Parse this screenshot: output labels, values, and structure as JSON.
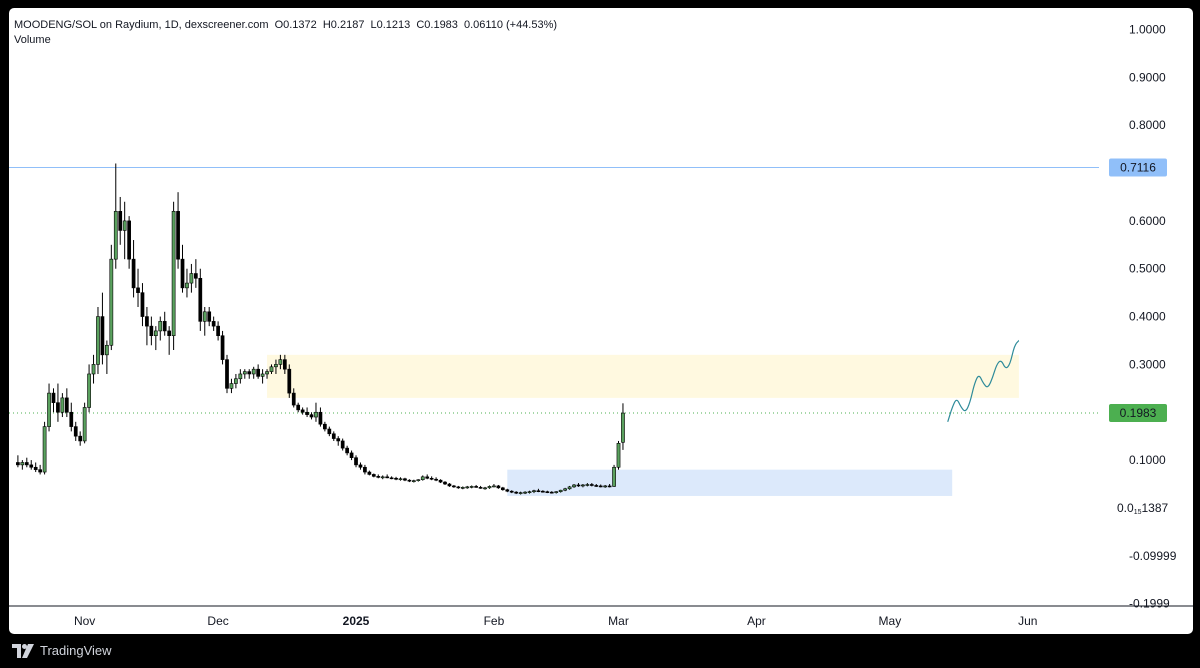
{
  "legend": {
    "symbol": "MOODENG/SOL on Raydium, 1D, dexscreener.com",
    "open": "O0.1372",
    "high": "H0.2187",
    "low": "L0.1213",
    "close": "C0.1983",
    "change": "0.06110 (+44.53%)",
    "volume_label": "Volume"
  },
  "footer": {
    "brand": "TradingView",
    "logo_icon": "tradingview-logo-icon"
  },
  "price_badges": {
    "resistance": {
      "label": "0.7116",
      "value": 0.7116,
      "color": "#90bff9",
      "line_color": "#90bff9"
    },
    "last": {
      "label": "0.1983",
      "value": 0.1983,
      "color": "#4caf50",
      "line_color": "#4caf50"
    }
  },
  "chart_data": {
    "type": "candlestick",
    "instrument": "MOODENG/SOL",
    "interval": "1D",
    "y_axis": {
      "ticks": [
        1.0,
        0.9,
        0.8,
        0.6,
        0.5,
        0.4,
        0.3,
        0.1,
        -0.09999,
        -0.1999
      ],
      "tick_labels": [
        "1.0000",
        "0.9000",
        "0.8000",
        "0.6000",
        "0.5000",
        "0.4000",
        "0.3000",
        "0.1000",
        "-0.09999",
        "-0.1999"
      ],
      "zero_label": {
        "value": 0.0,
        "main": "0.0",
        "sub": "15",
        "tail": "1387"
      },
      "range": [
        -0.205,
        1.045
      ]
    },
    "x_axis": {
      "labels": [
        {
          "text": "Nov",
          "day": 15,
          "bold": false
        },
        {
          "text": "Dec",
          "day": 45,
          "bold": false
        },
        {
          "text": "2025",
          "day": 76,
          "bold": true
        },
        {
          "text": "Feb",
          "day": 107,
          "bold": false
        },
        {
          "text": "Mar",
          "day": 135,
          "bold": false
        },
        {
          "text": "Apr",
          "day": 166,
          "bold": false
        },
        {
          "text": "May",
          "day": 196,
          "bold": false
        },
        {
          "text": "Jun",
          "day": 227,
          "bold": false
        }
      ],
      "range_days": [
        -2,
        243
      ]
    },
    "zones": [
      {
        "name": "resistance-zone",
        "from_day": 56,
        "to_day": 225,
        "low": 0.23,
        "high": 0.32,
        "color": "#fff9e0"
      },
      {
        "name": "accumulation-zone",
        "from_day": 110,
        "to_day": 210,
        "low": 0.025,
        "high": 0.08,
        "color": "#dce9fb"
      }
    ],
    "projection": {
      "color": "#2e8b9a",
      "points": [
        [
          209,
          0.18
        ],
        [
          210,
          0.21
        ],
        [
          211,
          0.23
        ],
        [
          212,
          0.21
        ],
        [
          213,
          0.2
        ],
        [
          214,
          0.22
        ],
        [
          215,
          0.26
        ],
        [
          216,
          0.28
        ],
        [
          217,
          0.26
        ],
        [
          218,
          0.25
        ],
        [
          219,
          0.27
        ],
        [
          220,
          0.3
        ],
        [
          221,
          0.31
        ],
        [
          222,
          0.29
        ],
        [
          223,
          0.3
        ],
        [
          224,
          0.34
        ],
        [
          225,
          0.35
        ]
      ]
    },
    "candles": [
      {
        "o": 0.095,
        "h": 0.11,
        "l": 0.085,
        "c": 0.09
      },
      {
        "o": 0.09,
        "h": 0.1,
        "l": 0.08,
        "c": 0.095
      },
      {
        "o": 0.095,
        "h": 0.105,
        "l": 0.085,
        "c": 0.09
      },
      {
        "o": 0.09,
        "h": 0.1,
        "l": 0.08,
        "c": 0.085
      },
      {
        "o": 0.085,
        "h": 0.095,
        "l": 0.075,
        "c": 0.08
      },
      {
        "o": 0.08,
        "h": 0.09,
        "l": 0.07,
        "c": 0.075
      },
      {
        "o": 0.075,
        "h": 0.18,
        "l": 0.07,
        "c": 0.17
      },
      {
        "o": 0.17,
        "h": 0.26,
        "l": 0.16,
        "c": 0.24
      },
      {
        "o": 0.24,
        "h": 0.25,
        "l": 0.2,
        "c": 0.22
      },
      {
        "o": 0.22,
        "h": 0.26,
        "l": 0.18,
        "c": 0.2
      },
      {
        "o": 0.2,
        "h": 0.24,
        "l": 0.19,
        "c": 0.23
      },
      {
        "o": 0.23,
        "h": 0.25,
        "l": 0.19,
        "c": 0.2
      },
      {
        "o": 0.2,
        "h": 0.22,
        "l": 0.16,
        "c": 0.17
      },
      {
        "o": 0.17,
        "h": 0.18,
        "l": 0.14,
        "c": 0.15
      },
      {
        "o": 0.15,
        "h": 0.16,
        "l": 0.13,
        "c": 0.14
      },
      {
        "o": 0.14,
        "h": 0.22,
        "l": 0.135,
        "c": 0.21
      },
      {
        "o": 0.21,
        "h": 0.3,
        "l": 0.2,
        "c": 0.28
      },
      {
        "o": 0.28,
        "h": 0.32,
        "l": 0.26,
        "c": 0.3
      },
      {
        "o": 0.3,
        "h": 0.42,
        "l": 0.28,
        "c": 0.4
      },
      {
        "o": 0.4,
        "h": 0.45,
        "l": 0.3,
        "c": 0.32
      },
      {
        "o": 0.32,
        "h": 0.35,
        "l": 0.28,
        "c": 0.34
      },
      {
        "o": 0.34,
        "h": 0.55,
        "l": 0.33,
        "c": 0.52
      },
      {
        "o": 0.52,
        "h": 0.72,
        "l": 0.5,
        "c": 0.62
      },
      {
        "o": 0.62,
        "h": 0.65,
        "l": 0.55,
        "c": 0.58
      },
      {
        "o": 0.58,
        "h": 0.64,
        "l": 0.52,
        "c": 0.6
      },
      {
        "o": 0.6,
        "h": 0.61,
        "l": 0.5,
        "c": 0.52
      },
      {
        "o": 0.52,
        "h": 0.56,
        "l": 0.44,
        "c": 0.46
      },
      {
        "o": 0.46,
        "h": 0.5,
        "l": 0.42,
        "c": 0.45
      },
      {
        "o": 0.45,
        "h": 0.47,
        "l": 0.38,
        "c": 0.4
      },
      {
        "o": 0.4,
        "h": 0.42,
        "l": 0.34,
        "c": 0.38
      },
      {
        "o": 0.38,
        "h": 0.4,
        "l": 0.34,
        "c": 0.36
      },
      {
        "o": 0.36,
        "h": 0.38,
        "l": 0.33,
        "c": 0.37
      },
      {
        "o": 0.37,
        "h": 0.4,
        "l": 0.35,
        "c": 0.39
      },
      {
        "o": 0.39,
        "h": 0.41,
        "l": 0.36,
        "c": 0.37
      },
      {
        "o": 0.37,
        "h": 0.38,
        "l": 0.32,
        "c": 0.36
      },
      {
        "o": 0.36,
        "h": 0.64,
        "l": 0.33,
        "c": 0.62
      },
      {
        "o": 0.62,
        "h": 0.66,
        "l": 0.5,
        "c": 0.52
      },
      {
        "o": 0.52,
        "h": 0.55,
        "l": 0.45,
        "c": 0.46
      },
      {
        "o": 0.46,
        "h": 0.5,
        "l": 0.44,
        "c": 0.47
      },
      {
        "o": 0.47,
        "h": 0.51,
        "l": 0.45,
        "c": 0.49
      },
      {
        "o": 0.49,
        "h": 0.52,
        "l": 0.46,
        "c": 0.48
      },
      {
        "o": 0.48,
        "h": 0.5,
        "l": 0.37,
        "c": 0.39
      },
      {
        "o": 0.39,
        "h": 0.42,
        "l": 0.36,
        "c": 0.41
      },
      {
        "o": 0.41,
        "h": 0.42,
        "l": 0.38,
        "c": 0.39
      },
      {
        "o": 0.39,
        "h": 0.4,
        "l": 0.37,
        "c": 0.38
      },
      {
        "o": 0.38,
        "h": 0.39,
        "l": 0.35,
        "c": 0.36
      },
      {
        "o": 0.36,
        "h": 0.37,
        "l": 0.3,
        "c": 0.31
      },
      {
        "o": 0.31,
        "h": 0.32,
        "l": 0.24,
        "c": 0.25
      },
      {
        "o": 0.25,
        "h": 0.27,
        "l": 0.24,
        "c": 0.26
      },
      {
        "o": 0.26,
        "h": 0.28,
        "l": 0.25,
        "c": 0.27
      },
      {
        "o": 0.27,
        "h": 0.29,
        "l": 0.26,
        "c": 0.28
      },
      {
        "o": 0.28,
        "h": 0.29,
        "l": 0.27,
        "c": 0.285
      },
      {
        "o": 0.285,
        "h": 0.29,
        "l": 0.27,
        "c": 0.28
      },
      {
        "o": 0.28,
        "h": 0.295,
        "l": 0.27,
        "c": 0.29
      },
      {
        "o": 0.29,
        "h": 0.3,
        "l": 0.27,
        "c": 0.275
      },
      {
        "o": 0.275,
        "h": 0.29,
        "l": 0.26,
        "c": 0.28
      },
      {
        "o": 0.28,
        "h": 0.29,
        "l": 0.27,
        "c": 0.285
      },
      {
        "o": 0.285,
        "h": 0.3,
        "l": 0.28,
        "c": 0.295
      },
      {
        "o": 0.295,
        "h": 0.31,
        "l": 0.28,
        "c": 0.3
      },
      {
        "o": 0.3,
        "h": 0.32,
        "l": 0.29,
        "c": 0.31
      },
      {
        "o": 0.31,
        "h": 0.32,
        "l": 0.28,
        "c": 0.29
      },
      {
        "o": 0.29,
        "h": 0.3,
        "l": 0.23,
        "c": 0.24
      },
      {
        "o": 0.24,
        "h": 0.25,
        "l": 0.21,
        "c": 0.215
      },
      {
        "o": 0.215,
        "h": 0.22,
        "l": 0.2,
        "c": 0.205
      },
      {
        "o": 0.205,
        "h": 0.21,
        "l": 0.195,
        "c": 0.2
      },
      {
        "o": 0.2,
        "h": 0.21,
        "l": 0.19,
        "c": 0.195
      },
      {
        "o": 0.195,
        "h": 0.2,
        "l": 0.185,
        "c": 0.19
      },
      {
        "o": 0.19,
        "h": 0.22,
        "l": 0.18,
        "c": 0.2
      },
      {
        "o": 0.2,
        "h": 0.21,
        "l": 0.17,
        "c": 0.175
      },
      {
        "o": 0.175,
        "h": 0.18,
        "l": 0.16,
        "c": 0.165
      },
      {
        "o": 0.165,
        "h": 0.17,
        "l": 0.15,
        "c": 0.155
      },
      {
        "o": 0.155,
        "h": 0.16,
        "l": 0.14,
        "c": 0.145
      },
      {
        "o": 0.145,
        "h": 0.15,
        "l": 0.13,
        "c": 0.14
      },
      {
        "o": 0.14,
        "h": 0.145,
        "l": 0.12,
        "c": 0.125
      },
      {
        "o": 0.125,
        "h": 0.13,
        "l": 0.11,
        "c": 0.115
      },
      {
        "o": 0.115,
        "h": 0.12,
        "l": 0.1,
        "c": 0.105
      },
      {
        "o": 0.105,
        "h": 0.11,
        "l": 0.085,
        "c": 0.09
      },
      {
        "o": 0.09,
        "h": 0.095,
        "l": 0.08,
        "c": 0.085
      },
      {
        "o": 0.085,
        "h": 0.09,
        "l": 0.07,
        "c": 0.075
      },
      {
        "o": 0.075,
        "h": 0.078,
        "l": 0.068,
        "c": 0.07
      },
      {
        "o": 0.07,
        "h": 0.072,
        "l": 0.064,
        "c": 0.066
      },
      {
        "o": 0.066,
        "h": 0.07,
        "l": 0.062,
        "c": 0.064
      },
      {
        "o": 0.064,
        "h": 0.068,
        "l": 0.06,
        "c": 0.065
      },
      {
        "o": 0.065,
        "h": 0.07,
        "l": 0.062,
        "c": 0.063
      },
      {
        "o": 0.063,
        "h": 0.066,
        "l": 0.06,
        "c": 0.062
      },
      {
        "o": 0.062,
        "h": 0.065,
        "l": 0.058,
        "c": 0.06
      },
      {
        "o": 0.06,
        "h": 0.064,
        "l": 0.057,
        "c": 0.061
      },
      {
        "o": 0.061,
        "h": 0.063,
        "l": 0.056,
        "c": 0.058
      },
      {
        "o": 0.058,
        "h": 0.06,
        "l": 0.054,
        "c": 0.056
      },
      {
        "o": 0.056,
        "h": 0.059,
        "l": 0.053,
        "c": 0.057
      },
      {
        "o": 0.057,
        "h": 0.06,
        "l": 0.055,
        "c": 0.059
      },
      {
        "o": 0.059,
        "h": 0.068,
        "l": 0.057,
        "c": 0.065
      },
      {
        "o": 0.065,
        "h": 0.07,
        "l": 0.06,
        "c": 0.062
      },
      {
        "o": 0.062,
        "h": 0.066,
        "l": 0.058,
        "c": 0.06
      },
      {
        "o": 0.06,
        "h": 0.064,
        "l": 0.056,
        "c": 0.058
      },
      {
        "o": 0.058,
        "h": 0.06,
        "l": 0.052,
        "c": 0.054
      },
      {
        "o": 0.054,
        "h": 0.056,
        "l": 0.048,
        "c": 0.05
      },
      {
        "o": 0.05,
        "h": 0.052,
        "l": 0.044,
        "c": 0.046
      },
      {
        "o": 0.046,
        "h": 0.048,
        "l": 0.042,
        "c": 0.044
      },
      {
        "o": 0.044,
        "h": 0.046,
        "l": 0.04,
        "c": 0.042
      },
      {
        "o": 0.042,
        "h": 0.045,
        "l": 0.039,
        "c": 0.043
      },
      {
        "o": 0.043,
        "h": 0.046,
        "l": 0.04,
        "c": 0.044
      },
      {
        "o": 0.044,
        "h": 0.047,
        "l": 0.041,
        "c": 0.045
      },
      {
        "o": 0.045,
        "h": 0.048,
        "l": 0.042,
        "c": 0.043
      },
      {
        "o": 0.043,
        "h": 0.046,
        "l": 0.04,
        "c": 0.041
      },
      {
        "o": 0.041,
        "h": 0.044,
        "l": 0.038,
        "c": 0.042
      },
      {
        "o": 0.042,
        "h": 0.047,
        "l": 0.04,
        "c": 0.045
      },
      {
        "o": 0.045,
        "h": 0.05,
        "l": 0.043,
        "c": 0.046
      },
      {
        "o": 0.046,
        "h": 0.048,
        "l": 0.04,
        "c": 0.042
      },
      {
        "o": 0.042,
        "h": 0.044,
        "l": 0.036,
        "c": 0.038
      },
      {
        "o": 0.038,
        "h": 0.04,
        "l": 0.033,
        "c": 0.035
      },
      {
        "o": 0.035,
        "h": 0.037,
        "l": 0.031,
        "c": 0.033
      },
      {
        "o": 0.033,
        "h": 0.035,
        "l": 0.029,
        "c": 0.031
      },
      {
        "o": 0.031,
        "h": 0.034,
        "l": 0.028,
        "c": 0.032
      },
      {
        "o": 0.032,
        "h": 0.035,
        "l": 0.029,
        "c": 0.033
      },
      {
        "o": 0.033,
        "h": 0.036,
        "l": 0.03,
        "c": 0.034
      },
      {
        "o": 0.034,
        "h": 0.038,
        "l": 0.031,
        "c": 0.036
      },
      {
        "o": 0.036,
        "h": 0.04,
        "l": 0.033,
        "c": 0.035
      },
      {
        "o": 0.035,
        "h": 0.037,
        "l": 0.032,
        "c": 0.034
      },
      {
        "o": 0.034,
        "h": 0.036,
        "l": 0.031,
        "c": 0.033
      },
      {
        "o": 0.033,
        "h": 0.035,
        "l": 0.03,
        "c": 0.032
      },
      {
        "o": 0.032,
        "h": 0.035,
        "l": 0.03,
        "c": 0.034
      },
      {
        "o": 0.034,
        "h": 0.038,
        "l": 0.032,
        "c": 0.037
      },
      {
        "o": 0.037,
        "h": 0.042,
        "l": 0.035,
        "c": 0.04
      },
      {
        "o": 0.04,
        "h": 0.046,
        "l": 0.038,
        "c": 0.044
      },
      {
        "o": 0.044,
        "h": 0.05,
        "l": 0.042,
        "c": 0.048
      },
      {
        "o": 0.048,
        "h": 0.052,
        "l": 0.044,
        "c": 0.046
      },
      {
        "o": 0.046,
        "h": 0.05,
        "l": 0.043,
        "c": 0.048
      },
      {
        "o": 0.048,
        "h": 0.052,
        "l": 0.045,
        "c": 0.049
      },
      {
        "o": 0.049,
        "h": 0.052,
        "l": 0.045,
        "c": 0.047
      },
      {
        "o": 0.047,
        "h": 0.05,
        "l": 0.044,
        "c": 0.046
      },
      {
        "o": 0.046,
        "h": 0.049,
        "l": 0.043,
        "c": 0.045
      },
      {
        "o": 0.045,
        "h": 0.048,
        "l": 0.042,
        "c": 0.046
      },
      {
        "o": 0.046,
        "h": 0.05,
        "l": 0.043,
        "c": 0.045
      },
      {
        "o": 0.045,
        "h": 0.09,
        "l": 0.044,
        "c": 0.085
      },
      {
        "o": 0.085,
        "h": 0.14,
        "l": 0.08,
        "c": 0.135
      },
      {
        "o": 0.1372,
        "h": 0.2187,
        "l": 0.1213,
        "c": 0.1983
      }
    ]
  }
}
